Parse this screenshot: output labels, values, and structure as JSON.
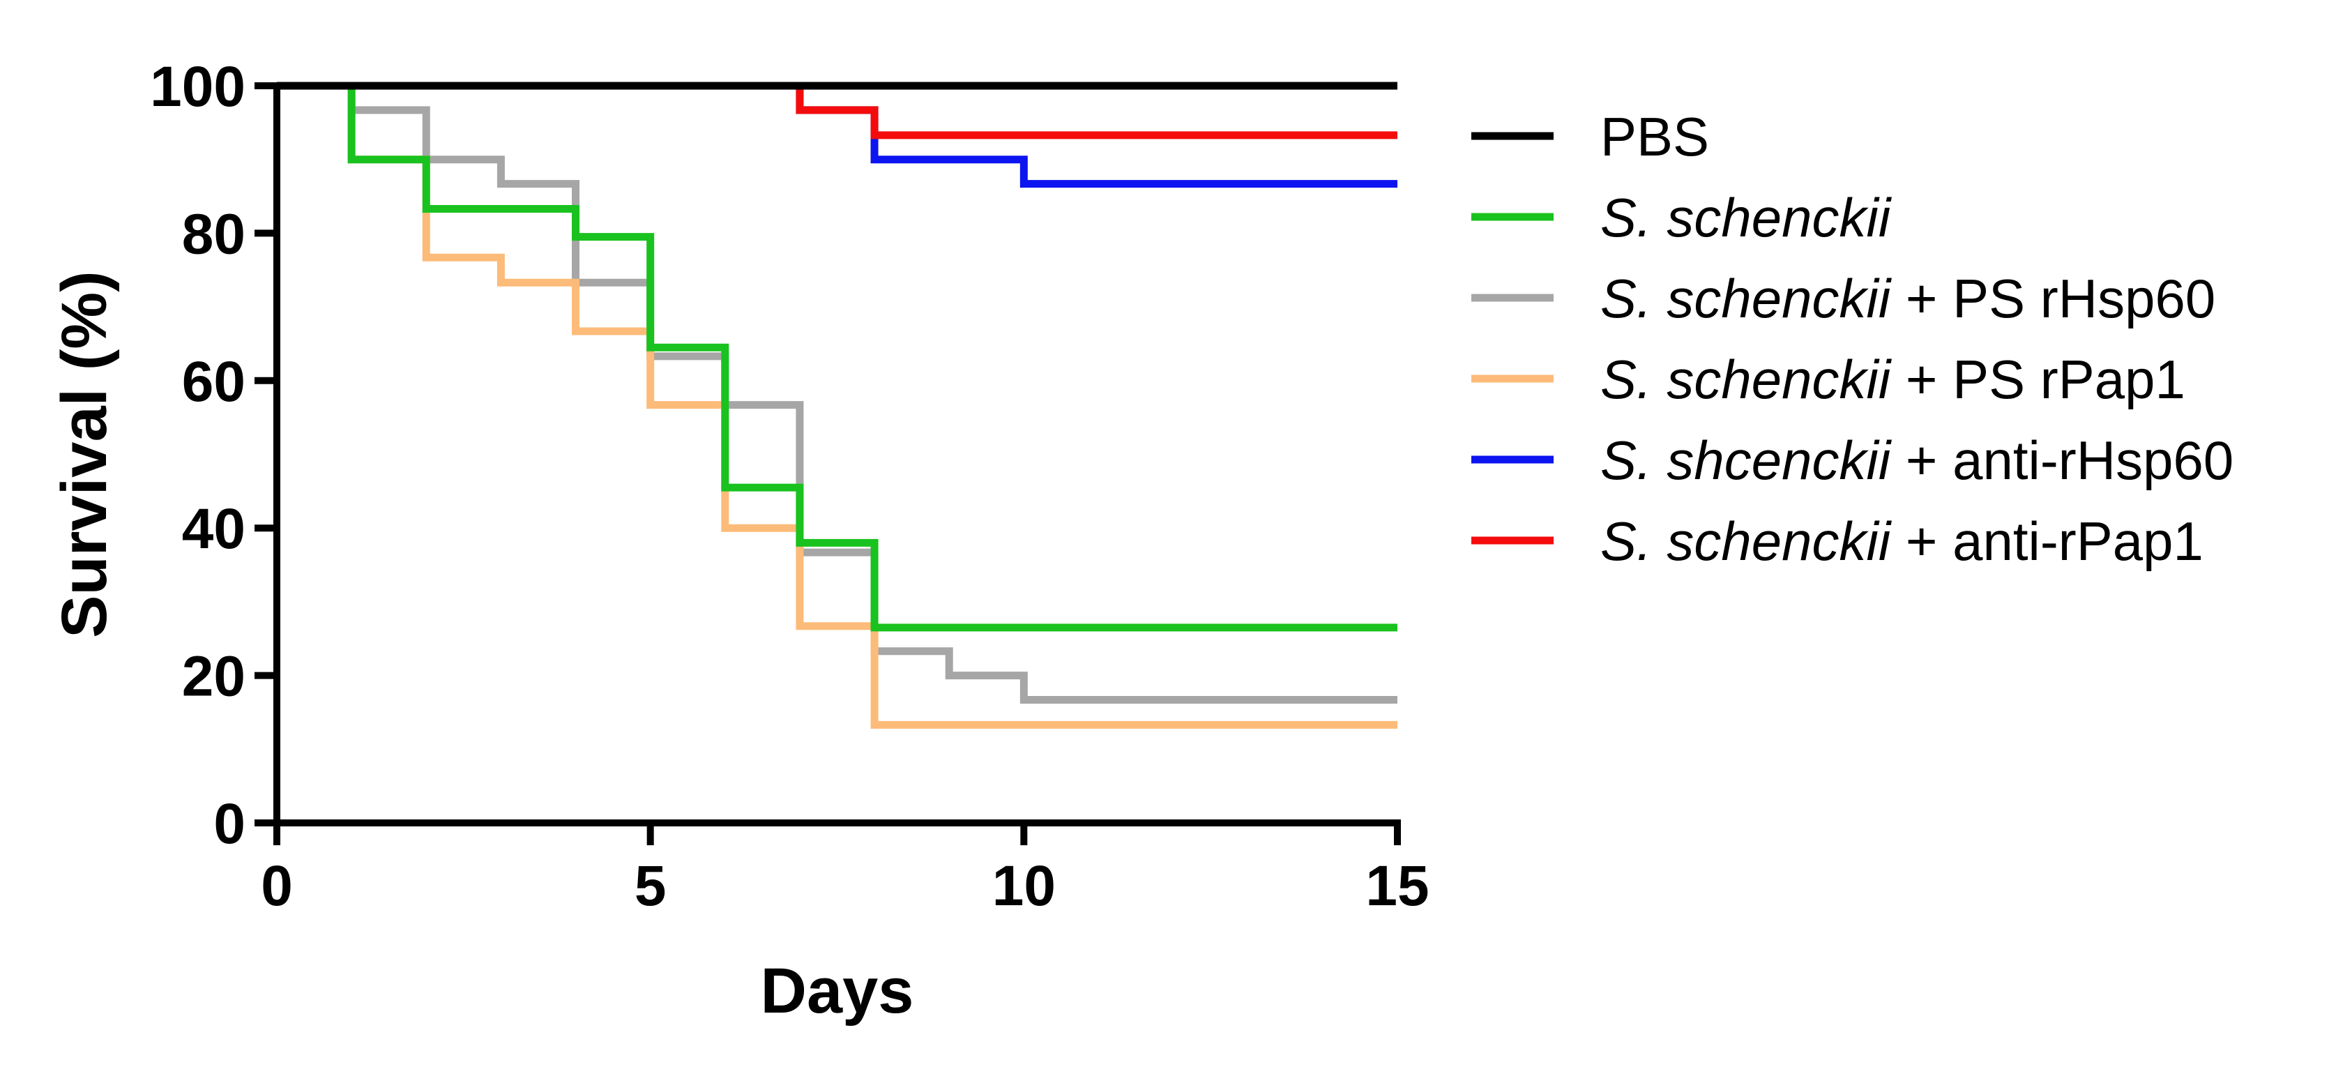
{
  "chart_data": {
    "type": "line",
    "step": true,
    "xlabel": "Days",
    "ylabel": "Survival (%)",
    "xlim": [
      0,
      15
    ],
    "ylim": [
      0,
      100
    ],
    "x_ticks": [
      0,
      5,
      10,
      15
    ],
    "y_ticks": [
      0,
      20,
      40,
      60,
      80,
      100
    ],
    "x_tick_labels": [
      "0",
      "5",
      "10",
      "15"
    ],
    "y_tick_labels": [
      "0",
      "20",
      "40",
      "60",
      "80",
      "100"
    ],
    "legend_position": "right",
    "series": [
      {
        "name": "PBS",
        "label_parts": [
          {
            "text": "PBS",
            "italic": false
          }
        ],
        "color": "#000000",
        "points": [
          [
            0,
            100
          ],
          [
            15,
            100
          ]
        ]
      },
      {
        "name": "S. schenckii",
        "label_parts": [
          {
            "text": "S. schenckii",
            "italic": true
          }
        ],
        "color": "#19c21e",
        "points": [
          [
            0,
            100
          ],
          [
            1,
            100
          ],
          [
            1,
            90
          ],
          [
            2,
            90
          ],
          [
            2,
            83.3
          ],
          [
            4,
            83.3
          ],
          [
            4,
            79.5
          ],
          [
            5,
            79.5
          ],
          [
            5,
            73.3
          ],
          [
            5,
            64.5
          ],
          [
            6,
            64.5
          ],
          [
            6,
            45.5
          ],
          [
            7,
            45.5
          ],
          [
            7,
            38
          ],
          [
            8,
            38
          ],
          [
            8,
            26.5
          ],
          [
            15,
            26.5
          ]
        ]
      },
      {
        "name": "S. schenckii + PS rHsp60",
        "label_parts": [
          {
            "text": "S. schenckii",
            "italic": true
          },
          {
            "text": " + PS rHsp60",
            "italic": false
          }
        ],
        "color": "#a6a6a6",
        "points": [
          [
            0,
            100
          ],
          [
            1,
            100
          ],
          [
            1,
            96.7
          ],
          [
            2,
            96.7
          ],
          [
            2,
            90
          ],
          [
            3,
            90
          ],
          [
            3,
            86.7
          ],
          [
            4,
            86.7
          ],
          [
            4,
            73.3
          ],
          [
            5,
            73.3
          ],
          [
            5,
            63.3
          ],
          [
            6,
            63.3
          ],
          [
            6,
            56.7
          ],
          [
            7,
            56.7
          ],
          [
            7,
            36.7
          ],
          [
            8,
            36.7
          ],
          [
            8,
            23.3
          ],
          [
            9,
            23.3
          ],
          [
            9,
            20
          ],
          [
            10,
            20
          ],
          [
            10,
            16.7
          ],
          [
            15,
            16.7
          ]
        ]
      },
      {
        "name": "S. schenckii + PS rPap1",
        "label_parts": [
          {
            "text": "S. schenckii",
            "italic": true
          },
          {
            "text": " + PS rPap1",
            "italic": false
          }
        ],
        "color": "#fdbb79",
        "points": [
          [
            0,
            100
          ],
          [
            1,
            100
          ],
          [
            1,
            90
          ],
          [
            2,
            90
          ],
          [
            2,
            76.7
          ],
          [
            3,
            76.7
          ],
          [
            3,
            73.3
          ],
          [
            4,
            73.3
          ],
          [
            4,
            66.7
          ],
          [
            5,
            66.7
          ],
          [
            5,
            56.7
          ],
          [
            6,
            56.7
          ],
          [
            6,
            40
          ],
          [
            7,
            40
          ],
          [
            7,
            26.7
          ],
          [
            8,
            26.7
          ],
          [
            8,
            13.3
          ],
          [
            15,
            13.3
          ]
        ]
      },
      {
        "name": "S. shcenckii + anti-rHsp60",
        "label_parts": [
          {
            "text": "S. shcenckii",
            "italic": true
          },
          {
            "text": " + anti-rHsp60",
            "italic": false
          }
        ],
        "color": "#0c14f0",
        "points": [
          [
            0,
            100
          ],
          [
            7,
            100
          ],
          [
            7,
            96.7
          ],
          [
            8,
            96.7
          ],
          [
            8,
            90
          ],
          [
            10,
            90
          ],
          [
            10,
            86.7
          ],
          [
            15,
            86.7
          ]
        ]
      },
      {
        "name": "S. schenckii + anti-rPap1",
        "label_parts": [
          {
            "text": "S. schenckii",
            "italic": true
          },
          {
            "text": " + anti-rPap1",
            "italic": false
          }
        ],
        "color": "#f40c0c",
        "points": [
          [
            0,
            100
          ],
          [
            7,
            100
          ],
          [
            7,
            96.7
          ],
          [
            8,
            96.7
          ],
          [
            8,
            93.3
          ],
          [
            15,
            93.3
          ]
        ]
      }
    ]
  }
}
